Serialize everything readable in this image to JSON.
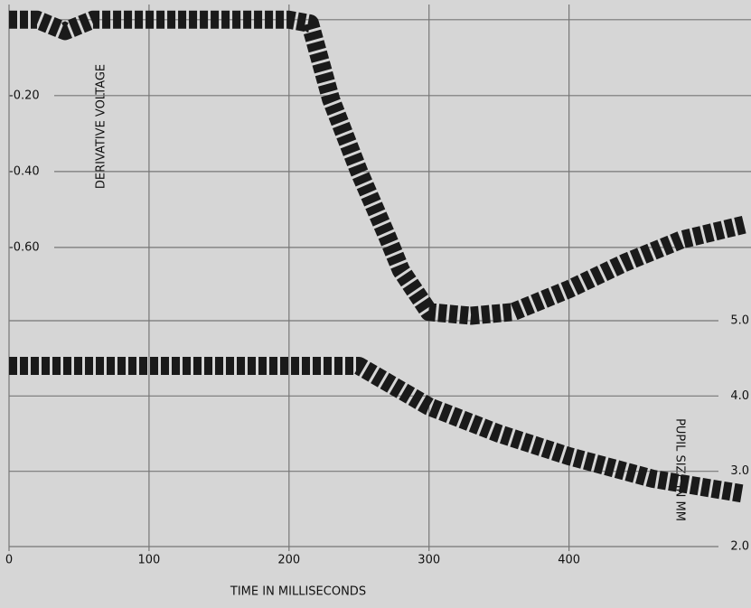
{
  "chart_data": {
    "type": "line",
    "x_label": "TIME IN MILLISECONDS",
    "y_label": "DERIVATIVE VOLTAGE",
    "y2_label": "PUPIL SIZE IN MM",
    "xlim": [
      0,
      530
    ],
    "xticks": [
      0,
      100,
      200,
      300,
      400
    ],
    "ylim": [
      -1.4,
      0.04
    ],
    "yticks": [
      0,
      {
        "value": -0.2,
        "label": "-0.20"
      },
      {
        "value": -0.4,
        "label": "-0.40"
      },
      {
        "value": -0.6,
        "label": "-0.60"
      }
    ],
    "y2lim": [
      1.94,
      9.2
    ],
    "y2ticks": [
      {
        "value": 5,
        "label": "5.0"
      },
      {
        "value": 4,
        "label": "4.0"
      },
      {
        "value": 3,
        "label": "3.0"
      },
      {
        "value": 2,
        "label": "2.0"
      }
    ],
    "grid": true,
    "series": [
      {
        "color": "#1a1a1a",
        "x": [
          0,
          20,
          40,
          60,
          100,
          150,
          200,
          215,
          230,
          250,
          270,
          280,
          300,
          330,
          360,
          400,
          440,
          480,
          525
        ],
        "values": [
          0,
          0,
          -0.03,
          0,
          0,
          0,
          0,
          -0.01,
          -0.21,
          -0.4,
          -0.57,
          -0.66,
          -0.77,
          -0.78,
          -0.77,
          -0.71,
          -0.64,
          -0.58,
          -0.54
        ]
      },
      {
        "color": "#1a1a1a",
        "axis": "y2",
        "x": [
          0,
          100,
          200,
          250,
          300,
          350,
          400,
          460,
          525
        ],
        "values": [
          4.4,
          4.4,
          4.4,
          4.4,
          3.86,
          3.5,
          3.2,
          2.9,
          2.7
        ]
      }
    ]
  }
}
